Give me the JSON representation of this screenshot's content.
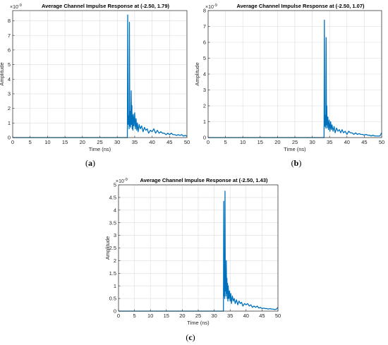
{
  "chart_data": [
    {
      "type": "line",
      "panel_label": "(a)",
      "caption_parts": [
        "(",
        "a",
        ")"
      ],
      "title": "Average Channel Impulse Response at (-2.50, 1.79)",
      "exponent_base": "×10",
      "exponent_power": "-9",
      "xlabel": "Time (ns)",
      "ylabel": "Amplitude",
      "xlim": [
        0,
        50
      ],
      "ylim": [
        0,
        8.7
      ],
      "xticks": [
        0,
        5,
        10,
        15,
        20,
        25,
        30,
        35,
        40,
        45,
        50
      ],
      "yticks": [
        0,
        1,
        2,
        3,
        4,
        5,
        6,
        7,
        8
      ],
      "grid": true,
      "color": "#0072BD",
      "series": [
        {
          "x": [
            0,
            32.9,
            33.0,
            33.1,
            33.2,
            33.3,
            33.4,
            33.5,
            33.6,
            33.7,
            33.8,
            33.9,
            34.0,
            34.1,
            34.2,
            34.3,
            34.4,
            34.5,
            34.6,
            34.8,
            35.0,
            35.2,
            35.4,
            35.6,
            35.8,
            36.0,
            36.3,
            36.6,
            37.0,
            37.4,
            37.8,
            38.2,
            38.6,
            39.0,
            39.5,
            40.0,
            40.5,
            41.0,
            41.5,
            42.0,
            42.5,
            43.0,
            43.5,
            44.0,
            44.5,
            45.0,
            45.5,
            46.0,
            46.5,
            47.0,
            47.5,
            48.0,
            48.5,
            49.0,
            49.5,
            50.0
          ],
          "y": [
            0,
            0,
            8.4,
            1.2,
            0.9,
            1.5,
            0.6,
            7.9,
            0.8,
            1.8,
            0.7,
            1.2,
            3.2,
            0.9,
            2.2,
            0.6,
            1.5,
            0.5,
            1.6,
            0.8,
            1.7,
            0.6,
            1.3,
            0.5,
            1.0,
            0.4,
            0.9,
            0.6,
            0.8,
            0.4,
            0.7,
            0.5,
            0.6,
            0.3,
            0.5,
            0.4,
            0.6,
            0.3,
            0.5,
            0.3,
            0.4,
            0.3,
            0.3,
            0.2,
            0.3,
            0.2,
            0.3,
            0.2,
            0.2,
            0.15,
            0.2,
            0.15,
            0.2,
            0.1,
            0.15,
            0.1
          ]
        }
      ]
    },
    {
      "type": "line",
      "panel_label": "(b)",
      "caption_parts": [
        "(",
        "b",
        ")"
      ],
      "title": "Average Channel Impulse Response at (-2.50, 1.07)",
      "exponent_base": "×10",
      "exponent_power": "-9",
      "xlabel": "Time (ns)",
      "ylabel": "Amplitude",
      "xlim": [
        0,
        50
      ],
      "ylim": [
        0,
        8
      ],
      "xticks": [
        0,
        5,
        10,
        15,
        20,
        25,
        30,
        35,
        40,
        45,
        50
      ],
      "yticks": [
        0,
        1,
        2,
        3,
        4,
        5,
        6,
        7,
        8
      ],
      "grid": true,
      "color": "#0072BD",
      "series": [
        {
          "x": [
            0,
            33.4,
            33.5,
            33.6,
            33.7,
            33.8,
            33.9,
            34.0,
            34.1,
            34.2,
            34.3,
            34.4,
            34.5,
            34.7,
            34.9,
            35.1,
            35.3,
            35.5,
            35.7,
            36.0,
            36.3,
            36.6,
            37.0,
            37.4,
            37.8,
            38.2,
            38.6,
            39.0,
            39.5,
            40.0,
            40.5,
            41.0,
            41.5,
            42.0,
            42.5,
            43.0,
            43.5,
            44.0,
            44.5,
            45.0,
            45.5,
            46.0,
            46.5,
            47.0,
            47.5,
            48.0,
            48.5,
            49.0,
            49.5,
            50.0
          ],
          "y": [
            0,
            0,
            7.4,
            1.0,
            0.7,
            1.4,
            0.6,
            6.3,
            0.8,
            2.0,
            0.6,
            1.1,
            1.3,
            0.5,
            1.1,
            0.4,
            1.0,
            0.5,
            0.8,
            0.4,
            0.7,
            0.3,
            0.6,
            0.4,
            0.5,
            0.3,
            0.5,
            0.3,
            0.4,
            0.2,
            0.4,
            0.3,
            0.3,
            0.2,
            0.3,
            0.2,
            0.25,
            0.2,
            0.2,
            0.15,
            0.2,
            0.15,
            0.15,
            0.1,
            0.15,
            0.1,
            0.1,
            0.1,
            0.1,
            0.3
          ]
        }
      ]
    },
    {
      "type": "line",
      "panel_label": "(c)",
      "caption_parts": [
        "(",
        "c",
        ")"
      ],
      "title": "Average Channel Impulse Response at (-2.50, 1.43)",
      "exponent_base": "×10",
      "exponent_power": "-9",
      "xlabel": "Time (ns)",
      "ylabel": "Amplitude",
      "xlim": [
        0,
        50
      ],
      "ylim": [
        0,
        5
      ],
      "xticks": [
        0,
        5,
        10,
        15,
        20,
        25,
        30,
        35,
        40,
        45,
        50
      ],
      "yticks": [
        0,
        0.5,
        1,
        1.5,
        2,
        2.5,
        3,
        3.5,
        4,
        4.5,
        5
      ],
      "grid": true,
      "color": "#0072BD",
      "series": [
        {
          "x": [
            0,
            32.9,
            33.0,
            33.1,
            33.2,
            33.3,
            33.4,
            33.5,
            33.6,
            33.7,
            33.8,
            33.9,
            34.0,
            34.1,
            34.2,
            34.3,
            34.4,
            34.6,
            34.8,
            35.0,
            35.2,
            35.4,
            35.7,
            36.0,
            36.3,
            36.6,
            37.0,
            37.4,
            37.8,
            38.2,
            38.6,
            39.0,
            39.5,
            40.0,
            40.5,
            41.0,
            41.5,
            42.0,
            42.5,
            43.0,
            43.5,
            44.0,
            44.5,
            45.0,
            45.5,
            46.0,
            46.5,
            47.0,
            47.5,
            48.0,
            48.5,
            49.0,
            49.5,
            50.0
          ],
          "y": [
            0,
            0,
            4.35,
            0.6,
            1.0,
            0.5,
            4.75,
            0.8,
            1.5,
            0.6,
            2.0,
            0.7,
            1.3,
            0.5,
            1.1,
            0.4,
            1.0,
            0.5,
            0.8,
            0.4,
            0.7,
            0.3,
            0.6,
            0.4,
            0.5,
            0.3,
            0.45,
            0.25,
            0.4,
            0.3,
            0.35,
            0.2,
            0.3,
            0.25,
            0.3,
            0.2,
            0.25,
            0.15,
            0.2,
            0.15,
            0.2,
            0.12,
            0.15,
            0.1,
            0.12,
            0.1,
            0.1,
            0.08,
            0.1,
            0.08,
            0.08,
            0.06,
            0.08,
            0.15
          ]
        }
      ]
    }
  ]
}
